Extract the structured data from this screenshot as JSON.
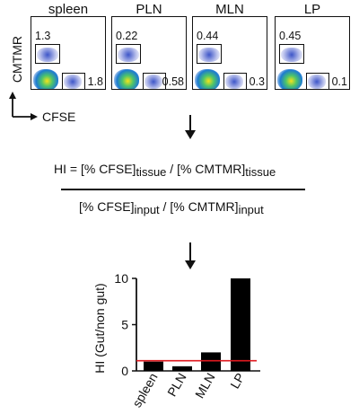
{
  "flow": {
    "y_axis_label": "CMTMR",
    "x_axis_label": "CFSE",
    "panels": [
      {
        "title": "spleen",
        "top_pct": "1.3",
        "right_pct": "1.8"
      },
      {
        "title": "PLN",
        "top_pct": "0.22",
        "right_pct": "0.58"
      },
      {
        "title": "MLN",
        "top_pct": "0.44",
        "right_pct": "0.3"
      },
      {
        "title": "LP",
        "top_pct": "0.45",
        "right_pct": "0.1"
      }
    ]
  },
  "formula": {
    "lhs": "HI = ",
    "num_a": "[% CFSE]",
    "num_a_sub": "tissue",
    "num_sep": " / ",
    "num_b": "[% CMTMR]",
    "num_b_sub": "tissue",
    "den_a": "[% CFSE]",
    "den_a_sub": "input",
    "den_sep": " / ",
    "den_b": "[% CMTMR]",
    "den_b_sub": "input"
  },
  "chart_data": {
    "type": "bar",
    "categories": [
      "spleen",
      "PLN",
      "MLN",
      "LP"
    ],
    "values": [
      1.0,
      0.5,
      2.0,
      10.0
    ],
    "ylabel": "HI (Gut/non gut)",
    "ylim": [
      0,
      10
    ],
    "yticks": [
      "0",
      "5",
      "10"
    ],
    "reference_line": 1.1,
    "bar_color": "#000000",
    "reference_color": "#e0191f"
  }
}
